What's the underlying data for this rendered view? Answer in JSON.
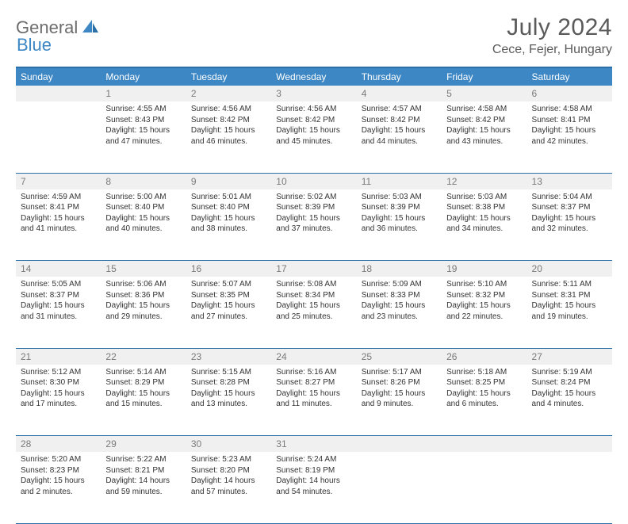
{
  "brand": {
    "part1": "General",
    "part2": "Blue",
    "logo_color": "#3d87c5"
  },
  "title": "July 2024",
  "location": "Cece, Fejer, Hungary",
  "colors": {
    "header_bg": "#3d87c5",
    "border": "#2a6fa8",
    "daynum_bg": "#f0f0f0",
    "daynum_fg": "#7a7a7a",
    "text": "#333333",
    "title_fg": "#5a5a5a"
  },
  "weekdays": [
    "Sunday",
    "Monday",
    "Tuesday",
    "Wednesday",
    "Thursday",
    "Friday",
    "Saturday"
  ],
  "weeks": [
    [
      {
        "day": "",
        "lines": []
      },
      {
        "day": "1",
        "lines": [
          "Sunrise: 4:55 AM",
          "Sunset: 8:43 PM",
          "Daylight: 15 hours and 47 minutes."
        ]
      },
      {
        "day": "2",
        "lines": [
          "Sunrise: 4:56 AM",
          "Sunset: 8:42 PM",
          "Daylight: 15 hours and 46 minutes."
        ]
      },
      {
        "day": "3",
        "lines": [
          "Sunrise: 4:56 AM",
          "Sunset: 8:42 PM",
          "Daylight: 15 hours and 45 minutes."
        ]
      },
      {
        "day": "4",
        "lines": [
          "Sunrise: 4:57 AM",
          "Sunset: 8:42 PM",
          "Daylight: 15 hours and 44 minutes."
        ]
      },
      {
        "day": "5",
        "lines": [
          "Sunrise: 4:58 AM",
          "Sunset: 8:42 PM",
          "Daylight: 15 hours and 43 minutes."
        ]
      },
      {
        "day": "6",
        "lines": [
          "Sunrise: 4:58 AM",
          "Sunset: 8:41 PM",
          "Daylight: 15 hours and 42 minutes."
        ]
      }
    ],
    [
      {
        "day": "7",
        "lines": [
          "Sunrise: 4:59 AM",
          "Sunset: 8:41 PM",
          "Daylight: 15 hours and 41 minutes."
        ]
      },
      {
        "day": "8",
        "lines": [
          "Sunrise: 5:00 AM",
          "Sunset: 8:40 PM",
          "Daylight: 15 hours and 40 minutes."
        ]
      },
      {
        "day": "9",
        "lines": [
          "Sunrise: 5:01 AM",
          "Sunset: 8:40 PM",
          "Daylight: 15 hours and 38 minutes."
        ]
      },
      {
        "day": "10",
        "lines": [
          "Sunrise: 5:02 AM",
          "Sunset: 8:39 PM",
          "Daylight: 15 hours and 37 minutes."
        ]
      },
      {
        "day": "11",
        "lines": [
          "Sunrise: 5:03 AM",
          "Sunset: 8:39 PM",
          "Daylight: 15 hours and 36 minutes."
        ]
      },
      {
        "day": "12",
        "lines": [
          "Sunrise: 5:03 AM",
          "Sunset: 8:38 PM",
          "Daylight: 15 hours and 34 minutes."
        ]
      },
      {
        "day": "13",
        "lines": [
          "Sunrise: 5:04 AM",
          "Sunset: 8:37 PM",
          "Daylight: 15 hours and 32 minutes."
        ]
      }
    ],
    [
      {
        "day": "14",
        "lines": [
          "Sunrise: 5:05 AM",
          "Sunset: 8:37 PM",
          "Daylight: 15 hours and 31 minutes."
        ]
      },
      {
        "day": "15",
        "lines": [
          "Sunrise: 5:06 AM",
          "Sunset: 8:36 PM",
          "Daylight: 15 hours and 29 minutes."
        ]
      },
      {
        "day": "16",
        "lines": [
          "Sunrise: 5:07 AM",
          "Sunset: 8:35 PM",
          "Daylight: 15 hours and 27 minutes."
        ]
      },
      {
        "day": "17",
        "lines": [
          "Sunrise: 5:08 AM",
          "Sunset: 8:34 PM",
          "Daylight: 15 hours and 25 minutes."
        ]
      },
      {
        "day": "18",
        "lines": [
          "Sunrise: 5:09 AM",
          "Sunset: 8:33 PM",
          "Daylight: 15 hours and 23 minutes."
        ]
      },
      {
        "day": "19",
        "lines": [
          "Sunrise: 5:10 AM",
          "Sunset: 8:32 PM",
          "Daylight: 15 hours and 22 minutes."
        ]
      },
      {
        "day": "20",
        "lines": [
          "Sunrise: 5:11 AM",
          "Sunset: 8:31 PM",
          "Daylight: 15 hours and 19 minutes."
        ]
      }
    ],
    [
      {
        "day": "21",
        "lines": [
          "Sunrise: 5:12 AM",
          "Sunset: 8:30 PM",
          "Daylight: 15 hours and 17 minutes."
        ]
      },
      {
        "day": "22",
        "lines": [
          "Sunrise: 5:14 AM",
          "Sunset: 8:29 PM",
          "Daylight: 15 hours and 15 minutes."
        ]
      },
      {
        "day": "23",
        "lines": [
          "Sunrise: 5:15 AM",
          "Sunset: 8:28 PM",
          "Daylight: 15 hours and 13 minutes."
        ]
      },
      {
        "day": "24",
        "lines": [
          "Sunrise: 5:16 AM",
          "Sunset: 8:27 PM",
          "Daylight: 15 hours and 11 minutes."
        ]
      },
      {
        "day": "25",
        "lines": [
          "Sunrise: 5:17 AM",
          "Sunset: 8:26 PM",
          "Daylight: 15 hours and 9 minutes."
        ]
      },
      {
        "day": "26",
        "lines": [
          "Sunrise: 5:18 AM",
          "Sunset: 8:25 PM",
          "Daylight: 15 hours and 6 minutes."
        ]
      },
      {
        "day": "27",
        "lines": [
          "Sunrise: 5:19 AM",
          "Sunset: 8:24 PM",
          "Daylight: 15 hours and 4 minutes."
        ]
      }
    ],
    [
      {
        "day": "28",
        "lines": [
          "Sunrise: 5:20 AM",
          "Sunset: 8:23 PM",
          "Daylight: 15 hours and 2 minutes."
        ]
      },
      {
        "day": "29",
        "lines": [
          "Sunrise: 5:22 AM",
          "Sunset: 8:21 PM",
          "Daylight: 14 hours and 59 minutes."
        ]
      },
      {
        "day": "30",
        "lines": [
          "Sunrise: 5:23 AM",
          "Sunset: 8:20 PM",
          "Daylight: 14 hours and 57 minutes."
        ]
      },
      {
        "day": "31",
        "lines": [
          "Sunrise: 5:24 AM",
          "Sunset: 8:19 PM",
          "Daylight: 14 hours and 54 minutes."
        ]
      },
      {
        "day": "",
        "lines": []
      },
      {
        "day": "",
        "lines": []
      },
      {
        "day": "",
        "lines": []
      }
    ]
  ]
}
